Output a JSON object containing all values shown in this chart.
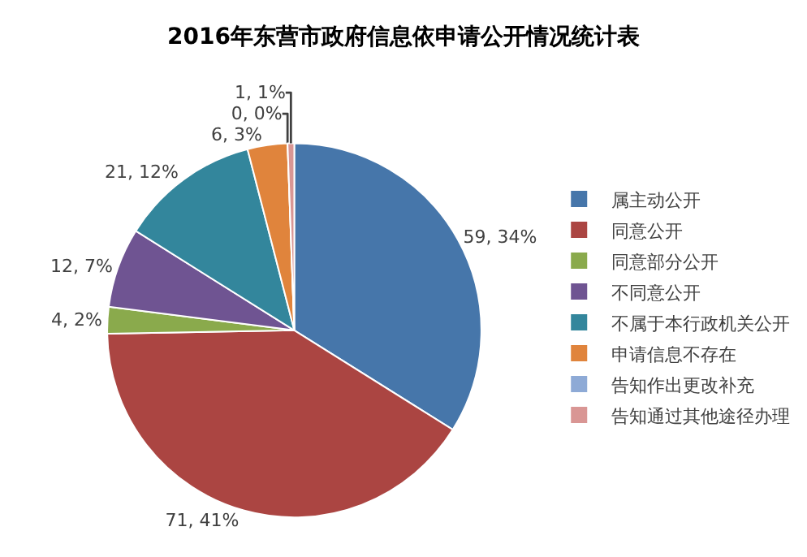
{
  "chart_data": {
    "type": "pie",
    "title": "2016年东营市政府信息依申请公开情况统计表",
    "categories": [
      "属主动公开",
      "同意公开",
      "同意部分公开",
      "不同意公开",
      "不属于本行政机关公开",
      "申请信息不存在",
      "告知作出更改补充",
      "告知通过其他途径办理"
    ],
    "values": [
      59,
      71,
      4,
      12,
      21,
      6,
      0,
      1
    ],
    "colors": [
      "#4676aa",
      "#ab4542",
      "#8aaa4c",
      "#6f5492",
      "#33869c",
      "#e0843c",
      "#8eaad6",
      "#d99694"
    ],
    "value_labels": [
      "59, 34%",
      "71, 41%",
      "4, 2%",
      "12, 7%",
      "21, 12%",
      "6, 3%",
      "0, 0%",
      "1, 1%"
    ],
    "legend": "right"
  }
}
